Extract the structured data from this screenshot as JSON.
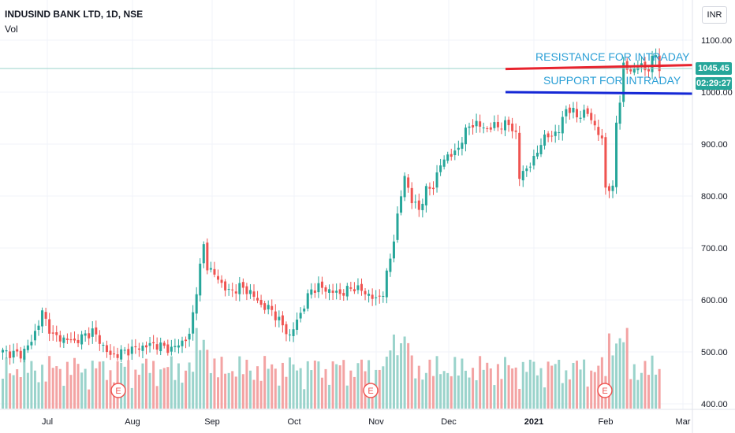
{
  "legend": {
    "symbol": "INDUSIND BANK LTD, 1D, NSE",
    "volume_label": "Vol"
  },
  "currency_button": "INR",
  "last_price": {
    "value": "1045.45",
    "color": "#26a69a"
  },
  "countdown": {
    "value": "02:29:27",
    "color": "#26a69a"
  },
  "colors": {
    "up": "#26a69a",
    "down": "#ef5350",
    "up_vol": "#9ad3cb",
    "down_vol": "#f3a3a3",
    "resistance": "#e8232d",
    "support": "#1528d6",
    "annotation": "#2a9fd6"
  },
  "annotations": {
    "resistance": "RESISTANCE FOR INTRADAY",
    "support": "SUPPORT FOR INTRADAY"
  },
  "earnings_marker": "E",
  "chart_data": {
    "type": "candlestick",
    "title": "INDUSIND BANK LTD, 1D, NSE",
    "y_axis": {
      "ticks": [
        "1100.00",
        "1000.00",
        "900.00",
        "800.00",
        "700.00",
        "600.00",
        "500.00",
        "400.00"
      ],
      "range": [
        400,
        1100
      ],
      "position": "right"
    },
    "x_axis": {
      "ticks": [
        "Jul",
        "Aug",
        "Sep",
        "Oct",
        "Nov",
        "Dec",
        "2021",
        "Feb",
        "Mar"
      ]
    },
    "resistance_level": 1052,
    "support_level": 1003,
    "anchors": [
      [
        0,
        500
      ],
      [
        5,
        495
      ],
      [
        8,
        520
      ],
      [
        11,
        575
      ],
      [
        14,
        530
      ],
      [
        20,
        520
      ],
      [
        25,
        540
      ],
      [
        30,
        492
      ],
      [
        36,
        505
      ],
      [
        42,
        515
      ],
      [
        47,
        505
      ],
      [
        52,
        530
      ],
      [
        54,
        620
      ],
      [
        56,
        705
      ],
      [
        57,
        665
      ],
      [
        60,
        640
      ],
      [
        63,
        615
      ],
      [
        66,
        625
      ],
      [
        69,
        615
      ],
      [
        72,
        590
      ],
      [
        75,
        580
      ],
      [
        78,
        550
      ],
      [
        80,
        530
      ],
      [
        82,
        560
      ],
      [
        84,
        590
      ],
      [
        86,
        620
      ],
      [
        88,
        625
      ],
      [
        91,
        618
      ],
      [
        94,
        612
      ],
      [
        98,
        625
      ],
      [
        102,
        610
      ],
      [
        104,
        600
      ],
      [
        106,
        615
      ],
      [
        108,
        680
      ],
      [
        110,
        760
      ],
      [
        112,
        840
      ],
      [
        114,
        790
      ],
      [
        116,
        775
      ],
      [
        118,
        810
      ],
      [
        120,
        820
      ],
      [
        122,
        860
      ],
      [
        124,
        880
      ],
      [
        126,
        880
      ],
      [
        128,
        910
      ],
      [
        130,
        935
      ],
      [
        132,
        940
      ],
      [
        134,
        930
      ],
      [
        138,
        935
      ],
      [
        141,
        938
      ],
      [
        143,
        920
      ],
      [
        144,
        835
      ],
      [
        146,
        855
      ],
      [
        148,
        868
      ],
      [
        150,
        905
      ],
      [
        152,
        915
      ],
      [
        155,
        925
      ],
      [
        157,
        970
      ],
      [
        160,
        955
      ],
      [
        163,
        960
      ],
      [
        165,
        935
      ],
      [
        167,
        905
      ],
      [
        168,
        820
      ],
      [
        170,
        810
      ],
      [
        171,
        945
      ],
      [
        172,
        985
      ],
      [
        173,
        1050
      ],
      [
        175,
        1040
      ],
      [
        177,
        1050
      ],
      [
        180,
        1045
      ],
      [
        182,
        1075
      ],
      [
        183,
        1045
      ]
    ],
    "earnings_markers_dates": [
      "Aug",
      "Nov",
      "Feb"
    ]
  }
}
